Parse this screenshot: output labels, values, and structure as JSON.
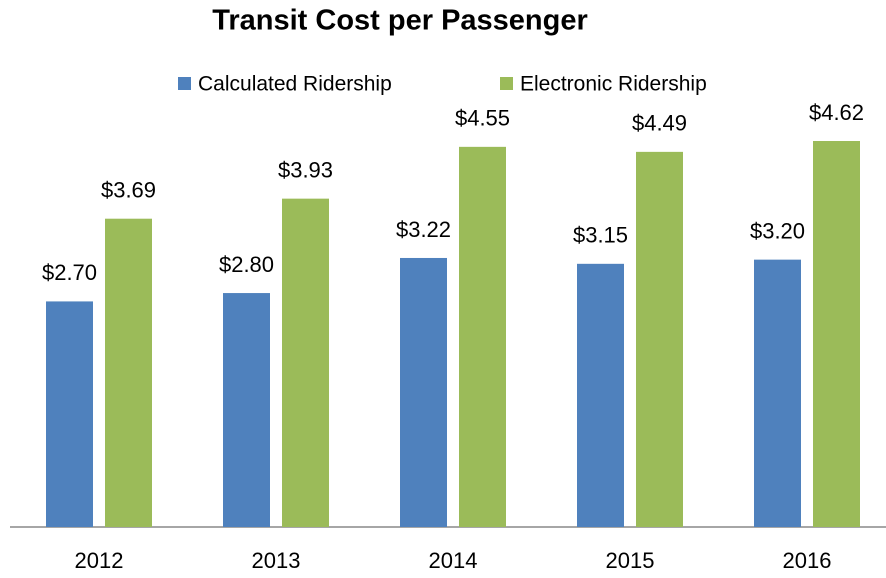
{
  "chart_data": {
    "type": "bar",
    "title": "Transit Cost per Passenger",
    "categories": [
      "2012",
      "2013",
      "2014",
      "2015",
      "2016"
    ],
    "series": [
      {
        "name": "Calculated Ridership",
        "color": "#4f81bd",
        "values": [
          2.7,
          2.8,
          3.22,
          3.15,
          3.2
        ],
        "value_labels": [
          "$2.70",
          "$2.80",
          "$3.22",
          "$3.15",
          "$3.20"
        ]
      },
      {
        "name": "Electronic Ridership",
        "color": "#9bbb59",
        "values": [
          3.69,
          3.93,
          4.55,
          4.49,
          4.62
        ],
        "value_labels": [
          "$3.69",
          "$3.93",
          "$4.55",
          "$4.49",
          "$4.62"
        ]
      }
    ],
    "legend": "top"
  }
}
